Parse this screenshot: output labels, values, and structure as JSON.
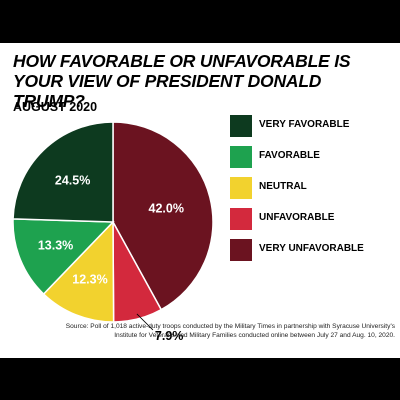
{
  "title": "HOW FAVORABLE OR UNFAVORABLE IS YOUR VIEW OF PRESIDENT DONALD TRUMP?",
  "subtitle": "AUGUST 2020",
  "source": "Source: Poll of 1,018 active-duty troops conducted by the Military Times in partnership with Syracuse University's Institute for Veterans and Military Families conducted online between July 27 and Aug. 10, 2020.",
  "chart_data": {
    "type": "pie",
    "title": "HOW FAVORABLE OR UNFAVORABLE IS YOUR VIEW OF PRESIDENT DONALD TRUMP?",
    "subtitle": "AUGUST 2020",
    "legend_position": "right",
    "slices": [
      {
        "name": "VERY UNFAVORABLE",
        "value": 42.0,
        "label": "42.0%",
        "color": "#6b1320"
      },
      {
        "name": "UNFAVORABLE",
        "value": 7.9,
        "label": "7.9%",
        "color": "#d3293d"
      },
      {
        "name": "NEUTRAL",
        "value": 12.3,
        "label": "12.3%",
        "color": "#f2d22e"
      },
      {
        "name": "FAVORABLE",
        "value": 13.3,
        "label": "13.3%",
        "color": "#1ea24f"
      },
      {
        "name": "VERY FAVORABLE",
        "value": 24.5,
        "label": "24.5%",
        "color": "#0d3a1f"
      }
    ],
    "legend": [
      {
        "name": "VERY FAVORABLE",
        "color": "#0d3a1f"
      },
      {
        "name": "FAVORABLE",
        "color": "#1ea24f"
      },
      {
        "name": "NEUTRAL",
        "color": "#f2d22e"
      },
      {
        "name": "UNFAVORABLE",
        "color": "#d3293d"
      },
      {
        "name": "VERY UNFAVORABLE",
        "color": "#6b1320"
      }
    ]
  }
}
